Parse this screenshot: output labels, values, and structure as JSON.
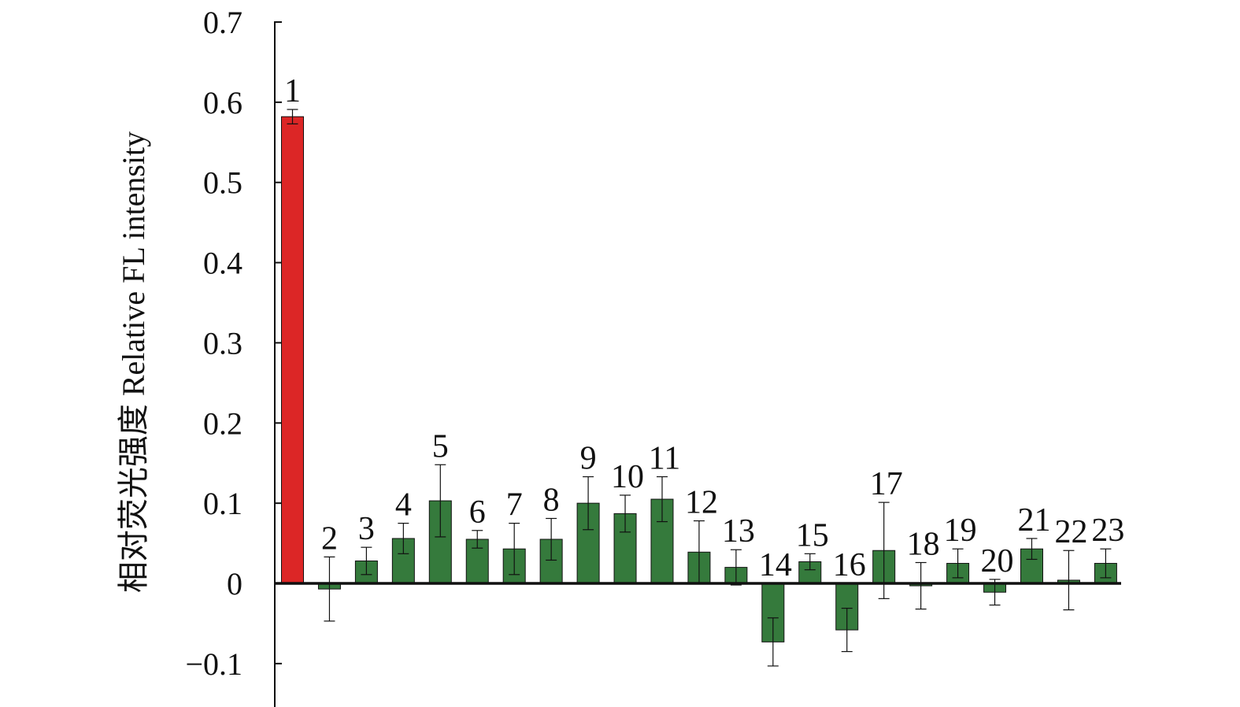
{
  "chart_data": {
    "type": "bar",
    "title": "",
    "xlabel": "",
    "ylabel": "相对荧光强度 Relative FL intensity",
    "ylim": [
      -0.15,
      0.7
    ],
    "yticks": [
      -0.1,
      0,
      0.1,
      0.2,
      0.3,
      0.4,
      0.5,
      0.6,
      0.7
    ],
    "ytick_labels": [
      "−0.1",
      "0",
      "0.1",
      "0.2",
      "0.3",
      "0.4",
      "0.5",
      "0.6",
      "0.7"
    ],
    "grid": false,
    "legend": "none",
    "categories": [
      "1",
      "2",
      "3",
      "4",
      "5",
      "6",
      "7",
      "8",
      "9",
      "10",
      "11",
      "12",
      "13",
      "14",
      "15",
      "16",
      "17",
      "18",
      "19",
      "20",
      "21",
      "22",
      "23"
    ],
    "values": [
      0.582,
      -0.007,
      0.028,
      0.056,
      0.103,
      0.055,
      0.043,
      0.055,
      0.1,
      0.087,
      0.105,
      0.039,
      0.02,
      -0.073,
      0.027,
      -0.058,
      0.041,
      -0.003,
      0.025,
      -0.011,
      0.043,
      0.004,
      0.025
    ],
    "errors": [
      0.009,
      0.04,
      0.017,
      0.019,
      0.045,
      0.011,
      0.032,
      0.026,
      0.033,
      0.023,
      0.028,
      0.039,
      0.022,
      0.03,
      0.01,
      0.027,
      0.06,
      0.029,
      0.018,
      0.016,
      0.013,
      0.037,
      0.018
    ],
    "colors": {
      "highlight": "#dc2626",
      "default": "#357a3c",
      "edge": "#111111",
      "axis": "#111111"
    },
    "highlight_indices": [
      0
    ]
  }
}
